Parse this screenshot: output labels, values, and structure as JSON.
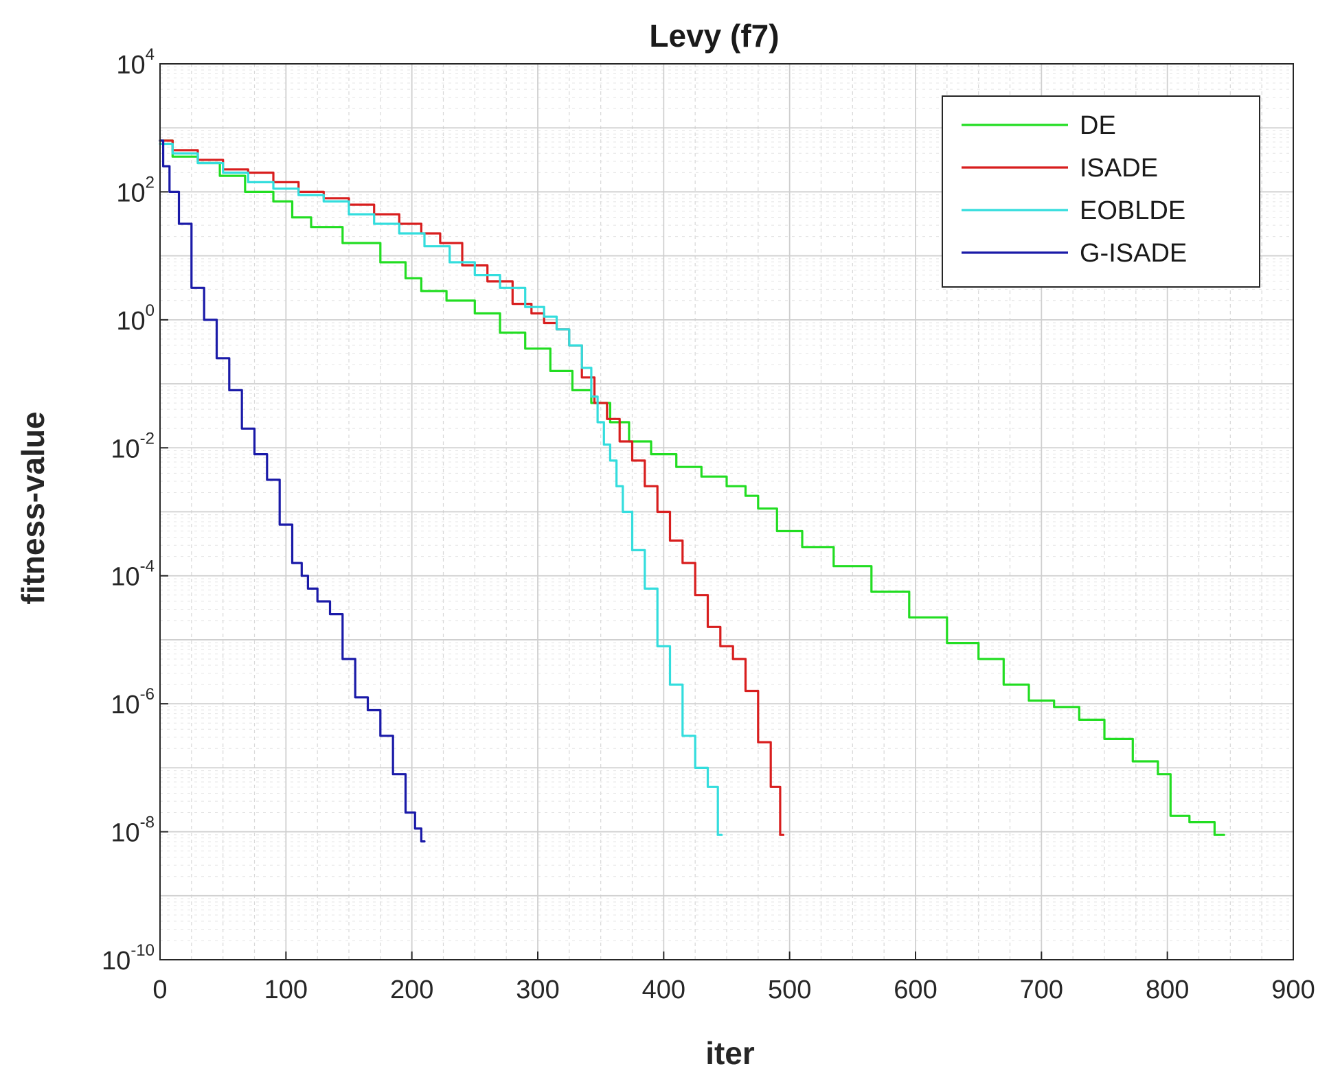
{
  "chart_data": {
    "type": "line",
    "title": "Levy (f7)",
    "xlabel": "iter",
    "ylabel": "fitness-value",
    "yscale": "log",
    "xlim": [
      0,
      900
    ],
    "ylim_exp": [
      -10,
      4
    ],
    "x_ticks": [
      "0",
      "100",
      "200",
      "300",
      "400",
      "500",
      "600",
      "700",
      "800",
      "900"
    ],
    "y_ticks": [
      {
        "base": "10",
        "exp": "4"
      },
      {
        "base": "10",
        "exp": "2"
      },
      {
        "base": "10",
        "exp": "0"
      },
      {
        "base": "10",
        "exp": "-2"
      },
      {
        "base": "10",
        "exp": "-4"
      },
      {
        "base": "10",
        "exp": "-6"
      },
      {
        "base": "10",
        "exp": "-8"
      },
      {
        "base": "10",
        "exp": "-10"
      }
    ],
    "grid": true,
    "legend_position": "top-right",
    "series": [
      {
        "name": "DE",
        "color": "#22dd22",
        "x": [
          0,
          20,
          40,
          55,
          80,
          100,
          110,
          130,
          160,
          190,
          200,
          215,
          240,
          260,
          280,
          300,
          320,
          335,
          350,
          365,
          380,
          400,
          420,
          440,
          460,
          470,
          480,
          500,
          520,
          550,
          580,
          610,
          640,
          660,
          680,
          700,
          720,
          740,
          760,
          785,
          800,
          805,
          830,
          845
        ],
        "log10_y": [
          2.8,
          2.55,
          2.45,
          2.25,
          2.0,
          1.85,
          1.6,
          1.45,
          1.2,
          0.9,
          0.65,
          0.45,
          0.3,
          0.1,
          -0.2,
          -0.45,
          -0.8,
          -1.1,
          -1.3,
          -1.6,
          -1.9,
          -2.1,
          -2.3,
          -2.45,
          -2.6,
          -2.75,
          -2.95,
          -3.3,
          -3.55,
          -3.85,
          -4.25,
          -4.65,
          -5.05,
          -5.3,
          -5.7,
          -5.95,
          -6.05,
          -6.25,
          -6.55,
          -6.9,
          -7.1,
          -7.75,
          -7.85,
          -8.05
        ]
      },
      {
        "name": "ISADE",
        "color": "#d81e1e",
        "x": [
          0,
          20,
          40,
          60,
          80,
          100,
          120,
          140,
          160,
          180,
          200,
          215,
          230,
          250,
          270,
          290,
          300,
          310,
          320,
          330,
          340,
          350,
          360,
          370,
          380,
          390,
          400,
          410,
          420,
          430,
          440,
          450,
          460,
          470,
          480,
          490,
          495
        ],
        "log10_y": [
          2.8,
          2.65,
          2.5,
          2.35,
          2.3,
          2.15,
          2.0,
          1.9,
          1.8,
          1.65,
          1.5,
          1.35,
          1.2,
          0.85,
          0.6,
          0.25,
          0.1,
          -0.05,
          -0.15,
          -0.4,
          -0.9,
          -1.3,
          -1.55,
          -1.9,
          -2.2,
          -2.6,
          -3.0,
          -3.45,
          -3.8,
          -4.3,
          -4.8,
          -5.1,
          -5.3,
          -5.8,
          -6.6,
          -7.3,
          -8.05
        ]
      },
      {
        "name": "EOBLDE",
        "color": "#33dddd",
        "x": [
          0,
          20,
          40,
          60,
          80,
          100,
          120,
          140,
          160,
          180,
          200,
          220,
          240,
          260,
          280,
          300,
          310,
          320,
          330,
          340,
          345,
          350,
          355,
          360,
          365,
          370,
          380,
          390,
          400,
          410,
          420,
          430,
          440,
          446
        ],
        "log10_y": [
          2.75,
          2.6,
          2.45,
          2.3,
          2.15,
          2.05,
          1.95,
          1.85,
          1.65,
          1.5,
          1.35,
          1.15,
          0.9,
          0.7,
          0.5,
          0.2,
          0.05,
          -0.15,
          -0.4,
          -0.75,
          -1.2,
          -1.6,
          -1.95,
          -2.2,
          -2.6,
          -3.0,
          -3.6,
          -4.2,
          -5.1,
          -5.7,
          -6.5,
          -7.0,
          -7.3,
          -8.05
        ]
      },
      {
        "name": "G-ISADE",
        "color": "#1a1aa8",
        "x": [
          0,
          5,
          10,
          20,
          30,
          40,
          50,
          60,
          70,
          80,
          90,
          100,
          110,
          115,
          120,
          130,
          140,
          150,
          160,
          170,
          180,
          190,
          200,
          205,
          210
        ],
        "log10_y": [
          2.8,
          2.4,
          2.0,
          1.5,
          0.5,
          0.0,
          -0.6,
          -1.1,
          -1.7,
          -2.1,
          -2.5,
          -3.2,
          -3.8,
          -4.0,
          -4.2,
          -4.4,
          -4.6,
          -5.3,
          -5.9,
          -6.1,
          -6.5,
          -7.1,
          -7.7,
          -7.95,
          -8.15
        ]
      }
    ]
  }
}
